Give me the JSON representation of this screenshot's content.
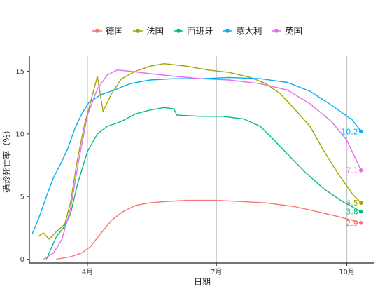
{
  "chart_data": {
    "type": "line",
    "xlabel": "日期",
    "ylabel": "确诊死亡率（%）",
    "x_ticks": [
      {
        "label": "4月",
        "date": "2020-04-01"
      },
      {
        "label": "7月",
        "date": "2020-07-01"
      },
      {
        "label": "10月",
        "date": "2020-10-01"
      }
    ],
    "y_ticks": [
      0,
      5,
      10,
      15
    ],
    "xlim": [
      "2020-02-20",
      "2020-10-20"
    ],
    "ylim": [
      -0.3,
      16.2
    ],
    "grid": "vertical major only",
    "legend_position": "top",
    "end_date": "2020-10-11",
    "series": [
      {
        "name": "德国",
        "color": "#F8766D",
        "end_label": "2.9",
        "points": [
          [
            "2020-03-10",
            0.0
          ],
          [
            "2020-03-20",
            0.2
          ],
          [
            "2020-03-28",
            0.5
          ],
          [
            "2020-04-03",
            1.0
          ],
          [
            "2020-04-10",
            2.0
          ],
          [
            "2020-04-18",
            3.1
          ],
          [
            "2020-04-26",
            3.8
          ],
          [
            "2020-05-05",
            4.3
          ],
          [
            "2020-05-15",
            4.5
          ],
          [
            "2020-05-25",
            4.6
          ],
          [
            "2020-06-10",
            4.7
          ],
          [
            "2020-07-01",
            4.7
          ],
          [
            "2020-07-20",
            4.6
          ],
          [
            "2020-08-05",
            4.5
          ],
          [
            "2020-08-25",
            4.2
          ],
          [
            "2020-09-10",
            3.8
          ],
          [
            "2020-09-25",
            3.4
          ],
          [
            "2020-10-05",
            3.1
          ],
          [
            "2020-10-11",
            2.9
          ]
        ]
      },
      {
        "name": "法国",
        "color": "#A3A500",
        "end_label": "4.5",
        "points": [
          [
            "2020-02-26",
            1.8
          ],
          [
            "2020-03-01",
            2.1
          ],
          [
            "2020-03-05",
            1.6
          ],
          [
            "2020-03-10",
            2.2
          ],
          [
            "2020-03-16",
            2.8
          ],
          [
            "2020-03-20",
            4.5
          ],
          [
            "2020-03-25",
            8.0
          ],
          [
            "2020-03-30",
            10.8
          ],
          [
            "2020-04-05",
            13.3
          ],
          [
            "2020-04-08",
            14.6
          ],
          [
            "2020-04-12",
            11.8
          ],
          [
            "2020-04-18",
            13.2
          ],
          [
            "2020-04-25",
            14.4
          ],
          [
            "2020-05-05",
            15.0
          ],
          [
            "2020-05-15",
            15.4
          ],
          [
            "2020-05-25",
            15.6
          ],
          [
            "2020-06-10",
            15.4
          ],
          [
            "2020-06-25",
            15.1
          ],
          [
            "2020-07-10",
            14.9
          ],
          [
            "2020-07-25",
            14.5
          ],
          [
            "2020-08-05",
            14.0
          ],
          [
            "2020-08-15",
            13.2
          ],
          [
            "2020-08-25",
            12.0
          ],
          [
            "2020-09-05",
            10.6
          ],
          [
            "2020-09-15",
            8.6
          ],
          [
            "2020-09-25",
            6.8
          ],
          [
            "2020-10-05",
            5.2
          ],
          [
            "2020-10-11",
            4.5
          ]
        ]
      },
      {
        "name": "西班牙",
        "color": "#00BF7D",
        "end_label": "3.8",
        "points": [
          [
            "2020-03-03",
            0.0
          ],
          [
            "2020-03-10",
            1.8
          ],
          [
            "2020-03-15",
            2.5
          ],
          [
            "2020-03-20",
            3.6
          ],
          [
            "2020-03-25",
            6.0
          ],
          [
            "2020-04-01",
            8.6
          ],
          [
            "2020-04-08",
            10.0
          ],
          [
            "2020-04-15",
            10.6
          ],
          [
            "2020-04-25",
            11.0
          ],
          [
            "2020-05-05",
            11.6
          ],
          [
            "2020-05-15",
            11.9
          ],
          [
            "2020-05-25",
            12.1
          ],
          [
            "2020-06-01",
            12.0
          ],
          [
            "2020-06-03",
            11.5
          ],
          [
            "2020-06-20",
            11.4
          ],
          [
            "2020-07-05",
            11.4
          ],
          [
            "2020-07-20",
            11.2
          ],
          [
            "2020-08-01",
            10.6
          ],
          [
            "2020-08-15",
            9.0
          ],
          [
            "2020-09-01",
            7.0
          ],
          [
            "2020-09-15",
            5.6
          ],
          [
            "2020-09-28",
            4.6
          ],
          [
            "2020-10-11",
            3.8
          ]
        ]
      },
      {
        "name": "意大利",
        "color": "#00B0F6",
        "end_label": "10.2",
        "points": [
          [
            "2020-02-22",
            2.0
          ],
          [
            "2020-02-27",
            3.4
          ],
          [
            "2020-03-03",
            5.0
          ],
          [
            "2020-03-08",
            6.5
          ],
          [
            "2020-03-13",
            7.6
          ],
          [
            "2020-03-18",
            8.8
          ],
          [
            "2020-03-23",
            10.4
          ],
          [
            "2020-03-28",
            11.6
          ],
          [
            "2020-04-02",
            12.5
          ],
          [
            "2020-04-10",
            13.1
          ],
          [
            "2020-04-20",
            13.5
          ],
          [
            "2020-05-01",
            14.0
          ],
          [
            "2020-05-15",
            14.3
          ],
          [
            "2020-06-01",
            14.4
          ],
          [
            "2020-06-20",
            14.4
          ],
          [
            "2020-07-10",
            14.5
          ],
          [
            "2020-08-01",
            14.4
          ],
          [
            "2020-08-20",
            14.1
          ],
          [
            "2020-09-05",
            13.4
          ],
          [
            "2020-09-20",
            12.3
          ],
          [
            "2020-10-05",
            11.1
          ],
          [
            "2020-10-11",
            10.2
          ]
        ]
      },
      {
        "name": "英国",
        "color": "#E76BF3",
        "end_label": "7.1",
        "points": [
          [
            "2020-03-01",
            0.0
          ],
          [
            "2020-03-08",
            0.5
          ],
          [
            "2020-03-14",
            1.6
          ],
          [
            "2020-03-20",
            4.0
          ],
          [
            "2020-03-26",
            8.0
          ],
          [
            "2020-04-01",
            11.5
          ],
          [
            "2020-04-08",
            13.6
          ],
          [
            "2020-04-15",
            14.7
          ],
          [
            "2020-04-22",
            15.1
          ],
          [
            "2020-05-01",
            15.0
          ],
          [
            "2020-05-15",
            14.8
          ],
          [
            "2020-06-01",
            14.6
          ],
          [
            "2020-06-20",
            14.4
          ],
          [
            "2020-07-10",
            14.3
          ],
          [
            "2020-08-01",
            14.0
          ],
          [
            "2020-08-20",
            13.5
          ],
          [
            "2020-09-05",
            12.4
          ],
          [
            "2020-09-20",
            11.0
          ],
          [
            "2020-10-01",
            9.5
          ],
          [
            "2020-10-11",
            7.1
          ]
        ]
      }
    ]
  }
}
